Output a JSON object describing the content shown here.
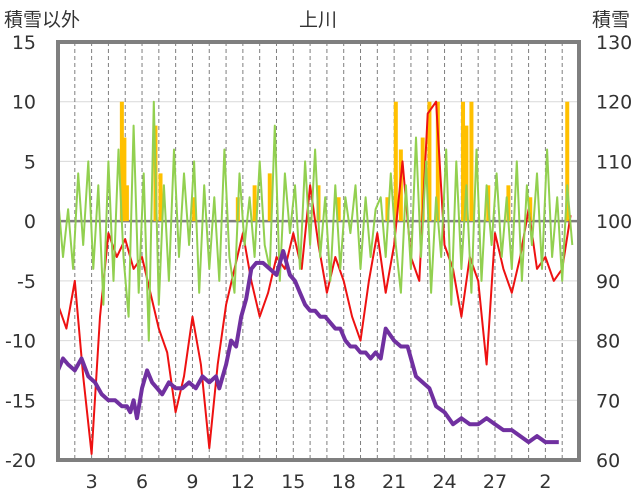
{
  "chart_data": {
    "type": "line",
    "title": "上川",
    "left_axis_label": "積雪以外",
    "right_axis_label": "積雪",
    "left_ylim": [
      -20,
      15
    ],
    "left_yticks": [
      -20,
      -15,
      -10,
      -5,
      0,
      5,
      10,
      15
    ],
    "right_ylim": [
      60,
      130
    ],
    "right_yticks": [
      60,
      70,
      80,
      90,
      100,
      110,
      120,
      130
    ],
    "x_range": [
      0,
      31
    ],
    "x_ticks": [
      {
        "x": 2,
        "label": "3"
      },
      {
        "x": 5,
        "label": "6"
      },
      {
        "x": 8,
        "label": "9"
      },
      {
        "x": 11,
        "label": "12"
      },
      {
        "x": 14,
        "label": "15"
      },
      {
        "x": 17,
        "label": "18"
      },
      {
        "x": 20,
        "label": "21"
      },
      {
        "x": 23,
        "label": "24"
      },
      {
        "x": 26,
        "label": "27"
      },
      {
        "x": 29,
        "label": "2"
      }
    ],
    "series": [
      {
        "name": "temperature",
        "axis": "left",
        "color": "#ee1111",
        "x": [
          0,
          0.5,
          1,
          1.5,
          2,
          2.5,
          3,
          3.5,
          4,
          4.5,
          5,
          5.5,
          6,
          6.5,
          7,
          7.5,
          8,
          8.5,
          9,
          9.5,
          10,
          10.5,
          11,
          11.5,
          12,
          12.5,
          13,
          13.5,
          14,
          14.5,
          15,
          15.5,
          16,
          16.5,
          17,
          17.5,
          18,
          18.5,
          19,
          19.5,
          20,
          20.5,
          21,
          21.5,
          22,
          22.5,
          23,
          23.5,
          24,
          24.5,
          25,
          25.5,
          26,
          26.5,
          27,
          27.5,
          28,
          28.5,
          29,
          29.5,
          30,
          30.5
        ],
        "values": [
          -7,
          -9,
          -5,
          -13,
          -19.5,
          -8,
          -1,
          -3,
          -1.5,
          -4,
          -3,
          -6,
          -9,
          -11,
          -16,
          -13,
          -8,
          -12,
          -19,
          -12,
          -7,
          -4,
          -1,
          -5,
          -8,
          -6,
          -3,
          -4,
          -1,
          -4,
          3,
          -2,
          -6,
          -3,
          -5,
          -8,
          -10,
          -5,
          -1,
          -6,
          -2,
          5,
          -3,
          -5,
          9,
          10,
          -2,
          -4,
          -8,
          -3,
          -5,
          -12,
          -1,
          -4,
          -6,
          -3,
          1,
          -4,
          -3,
          -5,
          -4,
          0.5
        ]
      },
      {
        "name": "precipitation",
        "axis": "left",
        "color": "#ffc000",
        "type": "bar",
        "x": [
          3.8,
          3.95,
          4.1,
          5.8,
          6.1,
          8.1,
          10.7,
          11.7,
          12.6,
          15.5,
          16.7,
          19.6,
          20.1,
          20.4,
          21.7,
          22.1,
          22.6,
          24.1,
          24.3,
          24.6,
          25.6,
          26.8,
          28.1,
          30.3
        ],
        "values": [
          10,
          7,
          3,
          8,
          4,
          2,
          2,
          3,
          4,
          3,
          2,
          2,
          10,
          6,
          7,
          10,
          10,
          10,
          8,
          10,
          3,
          3,
          2,
          10
        ]
      },
      {
        "name": "temperature_change",
        "axis": "left",
        "color": "#92d050",
        "x": [
          0,
          0.3,
          0.6,
          0.9,
          1.2,
          1.5,
          1.8,
          2.1,
          2.4,
          2.7,
          3,
          3.3,
          3.6,
          3.9,
          4.2,
          4.5,
          4.8,
          5.1,
          5.4,
          5.7,
          6,
          6.3,
          6.6,
          6.9,
          7.2,
          7.5,
          7.8,
          8.1,
          8.4,
          8.7,
          9,
          9.3,
          9.6,
          9.9,
          10.2,
          10.5,
          10.8,
          11.1,
          11.4,
          11.7,
          12,
          12.3,
          12.6,
          12.9,
          13.2,
          13.5,
          13.8,
          14.1,
          14.4,
          14.7,
          15,
          15.3,
          15.6,
          15.9,
          16.2,
          16.5,
          16.8,
          17.1,
          17.4,
          17.7,
          18,
          18.3,
          18.6,
          18.9,
          19.2,
          19.5,
          19.8,
          20.1,
          20.4,
          20.7,
          21,
          21.3,
          21.6,
          21.9,
          22.2,
          22.5,
          22.8,
          23.1,
          23.4,
          23.7,
          24,
          24.3,
          24.6,
          24.9,
          25.2,
          25.5,
          25.8,
          26.1,
          26.4,
          26.7,
          27,
          27.3,
          27.6,
          27.9,
          28.2,
          28.5,
          28.8,
          29.1,
          29.4,
          29.7,
          30,
          30.3,
          30.6
        ],
        "values": [
          2,
          -3,
          1,
          -4,
          4,
          -2,
          5,
          -4,
          3,
          -7,
          5,
          -5,
          6,
          -3,
          -8,
          8,
          -6,
          4,
          -10,
          10,
          -7,
          3,
          -5,
          6,
          -3,
          4,
          -2,
          5,
          -6,
          3,
          -4,
          2,
          -5,
          6,
          -3,
          -6,
          4,
          -2,
          2,
          -3,
          5,
          -2,
          -4,
          8,
          -5,
          4,
          -1,
          3,
          -4,
          5,
          -2,
          6,
          -3,
          2,
          -5,
          3,
          -4,
          2,
          -1,
          3,
          -4,
          2,
          -3,
          1,
          2,
          -3,
          4,
          -2,
          -6,
          3,
          -4,
          7,
          -3,
          5,
          -6,
          2,
          -3,
          6,
          -7,
          5,
          -4,
          3,
          -6,
          6,
          -5,
          3,
          -2,
          4,
          -3,
          2,
          -4,
          5,
          -5,
          3,
          -2,
          4,
          -4,
          6,
          -3,
          2,
          -5,
          3,
          -2
        ]
      },
      {
        "name": "snow_depth",
        "axis": "right",
        "color": "#7030a0",
        "x": [
          0,
          0.3,
          0.6,
          1,
          1.4,
          1.8,
          2.2,
          2.6,
          3,
          3.4,
          3.8,
          4.1,
          4.3,
          4.5,
          4.7,
          5,
          5.3,
          5.6,
          5.9,
          6.2,
          6.6,
          7,
          7.4,
          7.8,
          8.2,
          8.6,
          9,
          9.4,
          9.6,
          10,
          10.3,
          10.6,
          10.9,
          11.2,
          11.5,
          11.8,
          12.2,
          12.6,
          13,
          13.4,
          13.8,
          14.1,
          14.4,
          14.7,
          15,
          15.3,
          15.6,
          15.9,
          16.2,
          16.5,
          16.8,
          17.1,
          17.4,
          17.7,
          18,
          18.3,
          18.6,
          18.9,
          19.2,
          19.5,
          20,
          20.4,
          20.8,
          21.3,
          21.7,
          22.1,
          22.5,
          23,
          23.5,
          24,
          24.5,
          25,
          25.5,
          26,
          26.5,
          27,
          27.5,
          28,
          28.5,
          29,
          29.5,
          29.8
        ],
        "values": [
          75,
          77,
          76,
          75,
          77,
          74,
          73,
          71,
          70,
          70,
          69,
          69,
          68,
          70,
          67,
          72,
          75,
          73,
          72,
          71,
          73,
          72,
          72,
          73,
          72,
          74,
          73,
          74,
          72,
          76,
          80,
          79,
          84,
          87,
          92,
          93,
          93,
          92,
          91,
          95,
          91,
          90,
          88,
          86,
          85,
          85,
          84,
          84,
          83,
          82,
          82,
          80,
          79,
          79,
          78,
          78,
          77,
          78,
          77,
          82,
          80,
          79,
          79,
          74,
          73,
          72,
          69,
          68,
          66,
          67,
          66,
          66,
          67,
          66,
          65,
          65,
          64,
          63,
          64,
          63,
          63,
          63
        ]
      }
    ]
  }
}
